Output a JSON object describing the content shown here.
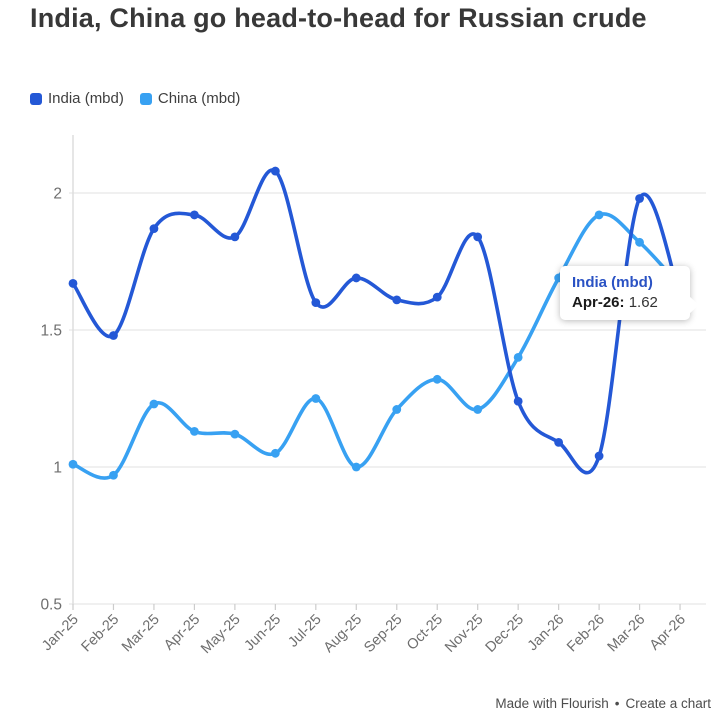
{
  "header": {
    "title": "India, China go head-to-head for Russian crude"
  },
  "chart_data": {
    "type": "line",
    "title": "India, China go head-to-head for Russian crude",
    "categories": [
      "Jan-25",
      "Feb-25",
      "Mar-25",
      "Apr-25",
      "May-25",
      "Jun-25",
      "Jul-25",
      "Aug-25",
      "Sep-25",
      "Oct-25",
      "Nov-25",
      "Dec-25",
      "Jan-26",
      "Feb-26",
      "Mar-26",
      "Apr-26"
    ],
    "series": [
      {
        "name": "India (mbd)",
        "color": "#2458d6",
        "values": [
          1.67,
          1.48,
          1.87,
          1.92,
          1.84,
          2.08,
          1.6,
          1.69,
          1.61,
          1.62,
          1.84,
          1.24,
          1.09,
          1.04,
          1.98,
          1.62
        ]
      },
      {
        "name": "China (mbd)",
        "color": "#38a1f2",
        "values": [
          1.01,
          0.97,
          1.23,
          1.13,
          1.12,
          1.05,
          1.25,
          1.0,
          1.21,
          1.32,
          1.21,
          1.4,
          1.69,
          1.92,
          1.82,
          1.66
        ]
      }
    ],
    "xlabel": "",
    "ylabel": "",
    "ylim": [
      0.5,
      2.21
    ],
    "yticks": [
      0.5,
      1,
      1.5,
      2
    ],
    "grid": true,
    "legend_position": "top",
    "curve": "smooth"
  },
  "tooltip": {
    "series": "India (mbd)",
    "label": "Apr-26:",
    "value": "1.62",
    "color": "#2a52c4"
  },
  "footer": {
    "made_with": "Made with Flourish",
    "separator": "•",
    "create": "Create a chart"
  },
  "style": {
    "grid_color": "#e8e8e8",
    "axis_color": "#d9d9d9",
    "tick_label_color": "#6e6e6e"
  }
}
